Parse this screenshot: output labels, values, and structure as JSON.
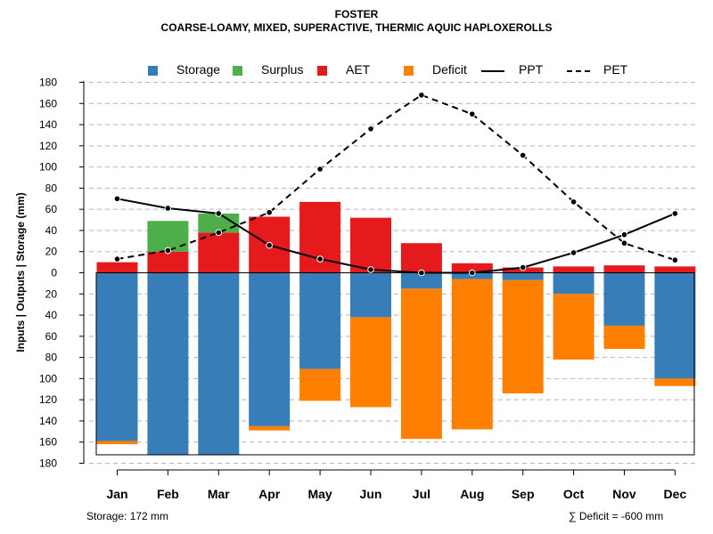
{
  "chart_data": {
    "type": "bar",
    "title": "FOSTER",
    "subtitle": "COARSE-LOAMY, MIXED, SUPERACTIVE, THERMIC AQUIC HAPLOXEROLLS",
    "ylabel": "Inputs | Outputs | Storage    (mm)",
    "ylim": [
      -180,
      180
    ],
    "y_ticks": [
      180,
      160,
      140,
      120,
      100,
      80,
      60,
      40,
      20,
      0,
      20,
      40,
      60,
      80,
      100,
      120,
      140,
      160,
      180
    ],
    "categories": [
      "Jan",
      "Feb",
      "Mar",
      "Apr",
      "May",
      "Jun",
      "Jul",
      "Aug",
      "Sep",
      "Oct",
      "Nov",
      "Dec"
    ],
    "legend": [
      {
        "name": "Storage",
        "kind": "box",
        "color": "#377EB8"
      },
      {
        "name": "Surplus",
        "kind": "box",
        "color": "#4DAF4A"
      },
      {
        "name": "AET",
        "kind": "box",
        "color": "#E41A1C"
      },
      {
        "name": "Deficit",
        "kind": "box",
        "color": "#FF7F00"
      },
      {
        "name": "PPT",
        "kind": "solid"
      },
      {
        "name": "PET",
        "kind": "dashed"
      }
    ],
    "series": [
      {
        "name": "AET",
        "color": "#E41A1C",
        "values": [
          10,
          20,
          38,
          53,
          67,
          52,
          28,
          9,
          5,
          6,
          7,
          6
        ]
      },
      {
        "name": "Surplus",
        "color": "#4DAF4A",
        "values": [
          0,
          29,
          18,
          0,
          0,
          0,
          0,
          0,
          0,
          0,
          0,
          0
        ]
      },
      {
        "name": "Storage",
        "color": "#377EB8",
        "values": [
          159,
          172,
          172,
          145,
          91,
          42,
          15,
          6,
          7,
          20,
          50,
          100
        ]
      },
      {
        "name": "Deficit",
        "color": "#FF7F00",
        "values": [
          3,
          0,
          0,
          4,
          30,
          85,
          142,
          142,
          107,
          62,
          22,
          7
        ]
      },
      {
        "name": "PPT",
        "type": "line",
        "values": [
          70,
          61,
          56,
          26,
          13,
          3,
          0,
          0,
          5,
          19,
          36,
          56
        ]
      },
      {
        "name": "PET",
        "type": "line",
        "values": [
          13,
          21,
          38,
          57,
          98,
          136,
          168,
          150,
          111,
          67,
          28,
          12
        ]
      }
    ],
    "storage_label": "Storage: 172 mm",
    "deficit_label": "∑ Deficit = -600 mm"
  }
}
